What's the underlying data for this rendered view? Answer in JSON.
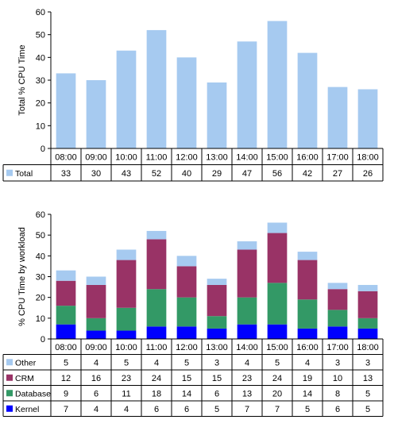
{
  "chart_data": [
    {
      "type": "bar",
      "ylabel": "Total % CPU Time",
      "ylim": [
        0,
        60
      ],
      "yticks": [
        0,
        10,
        20,
        30,
        40,
        50,
        60
      ],
      "grid": false,
      "legend": "in data table",
      "categories": [
        "08:00",
        "09:00",
        "10:00",
        "11:00",
        "12:00",
        "13:00",
        "14:00",
        "15:00",
        "16:00",
        "17:00",
        "18:00"
      ],
      "series": [
        {
          "name": "Total",
          "color": "#a6caf0",
          "values": [
            33,
            30,
            43,
            52,
            40,
            29,
            47,
            56,
            42,
            27,
            26
          ]
        }
      ]
    },
    {
      "type": "bar",
      "stacked": true,
      "ylabel": "% CPU Time by workload",
      "ylim": [
        0,
        60
      ],
      "yticks": [
        0,
        10,
        20,
        30,
        40,
        50,
        60
      ],
      "grid": false,
      "legend": "in data table",
      "categories": [
        "08:00",
        "09:00",
        "10:00",
        "11:00",
        "12:00",
        "13:00",
        "14:00",
        "15:00",
        "16:00",
        "17:00",
        "18:00"
      ],
      "series": [
        {
          "name": "Other",
          "color": "#a6caf0",
          "values": [
            5,
            4,
            5,
            4,
            5,
            3,
            4,
            5,
            4,
            3,
            3
          ]
        },
        {
          "name": "CRM",
          "color": "#993366",
          "values": [
            12,
            16,
            23,
            24,
            15,
            15,
            23,
            24,
            19,
            10,
            13
          ]
        },
        {
          "name": "Database",
          "color": "#339966",
          "values": [
            9,
            6,
            11,
            18,
            14,
            6,
            13,
            20,
            14,
            8,
            5
          ]
        },
        {
          "name": "Kernel",
          "color": "#0000ff",
          "values": [
            7,
            4,
            4,
            6,
            6,
            5,
            7,
            7,
            5,
            6,
            5
          ]
        }
      ]
    }
  ]
}
